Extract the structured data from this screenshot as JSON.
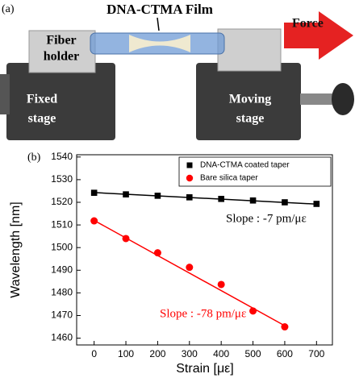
{
  "panel_a": {
    "label": "(a)",
    "film": "DNA-CTMA Film",
    "holder": [
      "Fiber",
      "holder"
    ],
    "fixed": [
      "Fixed",
      "stage"
    ],
    "moving": [
      "Moving",
      "stage"
    ],
    "force": "Force"
  },
  "chart_data": {
    "type": "scatter",
    "panel_label": "(b)",
    "x_label": "Strain [με]",
    "y_label": "Wavelength [nm]",
    "xlim": [
      -55,
      750
    ],
    "ylim": [
      1457,
      1541
    ],
    "xticks": [
      0,
      100,
      200,
      300,
      400,
      500,
      600,
      700
    ],
    "yticks": [
      1460,
      1470,
      1480,
      1490,
      1500,
      1510,
      1520,
      1530,
      1540
    ],
    "legend": "upper right",
    "series": [
      {
        "name": "DNA-CTMA coated taper",
        "color": "#000000",
        "marker": "square",
        "x": [
          0,
          100,
          200,
          300,
          400,
          500,
          600,
          700
        ],
        "values": [
          1524.2,
          1523.5,
          1522.9,
          1522.2,
          1521.5,
          1520.8,
          1520.0,
          1519.3
        ],
        "fit": {
          "x": [
            0,
            700
          ],
          "y": [
            1524.3,
            1519.2
          ]
        },
        "annotation": "Slope : -7 pm/με"
      },
      {
        "name": "Bare silica taper",
        "color": "#ff0000",
        "marker": "circle",
        "x": [
          0,
          100,
          200,
          300,
          400,
          500,
          600
        ],
        "values": [
          1511.8,
          1504.0,
          1497.7,
          1491.3,
          1483.7,
          1472.0,
          1465.0
        ],
        "fit": {
          "x": [
            0,
            600
          ],
          "y": [
            1512.0,
            1465.5
          ]
        },
        "annotation": "Slope : -78 pm/με"
      }
    ]
  }
}
